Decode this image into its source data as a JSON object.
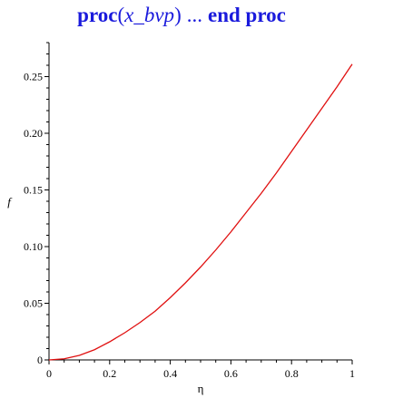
{
  "title": {
    "proc_kw": "proc",
    "open_paren": "(",
    "arg": "x_bvp",
    "close_paren": ")",
    "ellipsis": "...",
    "end_kw": "end proc"
  },
  "colors": {
    "title": "#1a1adc",
    "curve": "#e01010",
    "axis": "#000000"
  },
  "chart_data": {
    "type": "line",
    "xlabel": "η",
    "ylabel": "f",
    "xlim": [
      0,
      1
    ],
    "ylim": [
      0,
      0.28
    ],
    "x_ticks": [
      0,
      0.2,
      0.4,
      0.6,
      0.8,
      1
    ],
    "x_tick_labels": [
      "0",
      "0.2",
      "0.4",
      "0.6",
      "0.8",
      "1"
    ],
    "y_ticks": [
      0,
      0.05,
      0.1,
      0.15,
      0.2,
      0.25
    ],
    "y_tick_labels": [
      "0",
      "0.05",
      "0.10",
      "0.15",
      "0.20",
      "0.25"
    ],
    "grid": false,
    "series": [
      {
        "x": [
          0,
          0.05,
          0.1,
          0.15,
          0.2,
          0.25,
          0.3,
          0.35,
          0.4,
          0.45,
          0.5,
          0.55,
          0.6,
          0.65,
          0.7,
          0.75,
          0.8,
          0.85,
          0.9,
          0.95,
          1.0
        ],
        "y": [
          0,
          0.001,
          0.004,
          0.009,
          0.016,
          0.024,
          0.033,
          0.043,
          0.055,
          0.068,
          0.082,
          0.097,
          0.113,
          0.13,
          0.147,
          0.165,
          0.184,
          0.203,
          0.222,
          0.241,
          0.261
        ]
      }
    ]
  }
}
